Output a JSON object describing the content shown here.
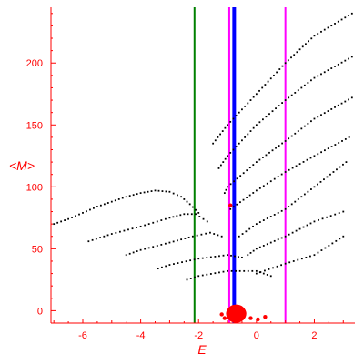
{
  "chart_data": {
    "type": "scatter",
    "title": "",
    "xlabel": "E",
    "ylabel": "<M>",
    "xlim": [
      -7.1,
      3.4
    ],
    "ylim": [
      -10,
      245
    ],
    "xticks": [
      -6,
      -4,
      -2,
      0,
      2
    ],
    "yticks": [
      0,
      50,
      100,
      150,
      200
    ],
    "grid": false,
    "colors": {
      "axes": "#ff0000",
      "points": "#000000",
      "cluster": "#ff0000",
      "line_green": "#008000",
      "line_magenta": "#ff00ff",
      "line_blue": "#0000ff"
    },
    "vertical_lines": [
      {
        "x": -2.14,
        "color": "#008000"
      },
      {
        "x": -0.94,
        "color": "#ff00ff"
      },
      {
        "x": -0.77,
        "color": "#0000ff"
      },
      {
        "x": 1.0,
        "color": "#ff00ff"
      }
    ],
    "series": [
      {
        "x": [
          -7.0,
          -6.5,
          -6.0,
          -5.5,
          -5.0,
          -4.5,
          -4.0,
          -3.5,
          -3.0,
          -2.6,
          -2.3,
          -2.0
        ],
        "values": [
          70,
          74,
          79,
          84,
          88,
          92,
          95,
          97,
          96,
          92,
          86,
          79
        ]
      },
      {
        "x": [
          -5.8,
          -5.0,
          -4.0,
          -3.0,
          -2.5,
          -2.1,
          -1.7
        ],
        "values": [
          56,
          62,
          68,
          75,
          78,
          78,
          72
        ]
      },
      {
        "x": [
          -4.5,
          -4.0,
          -3.0,
          -2.2,
          -1.6,
          -1.2
        ],
        "values": [
          45,
          49,
          55,
          60,
          63,
          60
        ]
      },
      {
        "x": [
          -3.4,
          -3.0,
          -2.0,
          -1.0,
          -0.5
        ],
        "values": [
          34,
          37,
          42,
          45,
          43
        ]
      },
      {
        "x": [
          -2.4,
          -2.0,
          -1.0,
          0.0,
          0.5
        ],
        "values": [
          25,
          28,
          32,
          32,
          28
        ]
      },
      {
        "x": [
          -1.5,
          -1.0,
          0.0,
          1.0,
          2.0,
          3.3
        ],
        "values": [
          135,
          150,
          175,
          200,
          222,
          240
        ]
      },
      {
        "x": [
          -1.3,
          -1.0,
          0.0,
          1.0,
          2.0,
          3.3
        ],
        "values": [
          115,
          125,
          150,
          170,
          188,
          205
        ]
      },
      {
        "x": [
          -1.1,
          -1.0,
          0.0,
          1.0,
          2.0,
          3.3
        ],
        "values": [
          95,
          100,
          120,
          137,
          155,
          172
        ]
      },
      {
        "x": [
          -0.9,
          0.0,
          1.0,
          2.0,
          3.2
        ],
        "values": [
          82,
          97,
          112,
          125,
          140
        ]
      },
      {
        "x": [
          -0.6,
          0.0,
          1.0,
          2.0,
          3.1
        ],
        "values": [
          60,
          70,
          82,
          100,
          120
        ]
      },
      {
        "x": [
          -0.3,
          0.0,
          1.0,
          2.0,
          3.0
        ],
        "values": [
          45,
          50,
          60,
          72,
          80
        ]
      },
      {
        "x": [
          0.0,
          1.0,
          2.0,
          3.0
        ],
        "values": [
          30,
          38,
          45,
          60
        ]
      }
    ],
    "cluster": {
      "x_range": [
        -1.05,
        -0.35
      ],
      "y_range": [
        -10,
        2
      ]
    },
    "red_points": [
      {
        "x": -1.2,
        "y": -3
      },
      {
        "x": -1.1,
        "y": -6
      },
      {
        "x": -0.9,
        "y": 85
      },
      {
        "x": -0.2,
        "y": -6
      },
      {
        "x": 0.05,
        "y": -7
      },
      {
        "x": 0.3,
        "y": -5
      }
    ]
  }
}
